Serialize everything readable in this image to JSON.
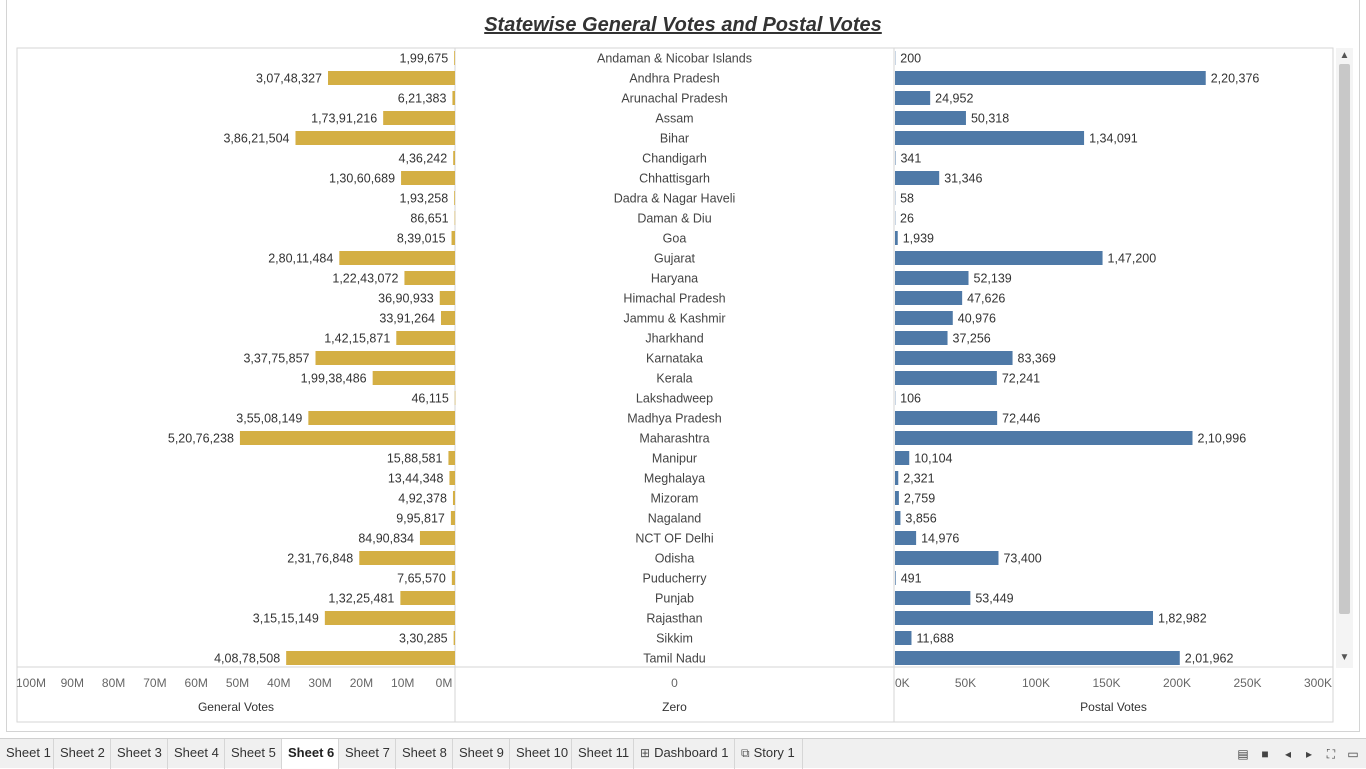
{
  "chart_data": {
    "type": "bar",
    "title": "Statewise General Votes and Postal Votes",
    "categories": [
      "Andaman & Nicobar Islands",
      "Andhra Pradesh",
      "Arunachal Pradesh",
      "Assam",
      "Bihar",
      "Chandigarh",
      "Chhattisgarh",
      "Dadra & Nagar Haveli",
      "Daman & Diu",
      "Goa",
      "Gujarat",
      "Haryana",
      "Himachal Pradesh",
      "Jammu & Kashmir",
      "Jharkhand",
      "Karnataka",
      "Kerala",
      "Lakshadweep",
      "Madhya Pradesh",
      "Maharashtra",
      "Manipur",
      "Meghalaya",
      "Mizoram",
      "Nagaland",
      "NCT OF Delhi",
      "Odisha",
      "Puducherry",
      "Punjab",
      "Rajasthan",
      "Sikkim",
      "Tamil Nadu"
    ],
    "series": [
      {
        "name": "General Votes",
        "color": "#d4af44",
        "values": [
          199675,
          30748327,
          621383,
          17391216,
          38621504,
          436242,
          13060689,
          193258,
          86651,
          839015,
          28011484,
          12243072,
          3690933,
          3391264,
          14215871,
          33775857,
          19938486,
          46115,
          35508149,
          52076238,
          1588581,
          1344348,
          492378,
          995817,
          8490834,
          23176848,
          765570,
          13225481,
          31515149,
          330285,
          40878508
        ],
        "labels": [
          "1,99,675",
          "3,07,48,327",
          "6,21,383",
          "1,73,91,216",
          "3,86,21,504",
          "4,36,242",
          "1,30,60,689",
          "1,93,258",
          "86,651",
          "8,39,015",
          "2,80,11,484",
          "1,22,43,072",
          "36,90,933",
          "33,91,264",
          "1,42,15,871",
          "3,37,75,857",
          "1,99,38,486",
          "46,115",
          "3,55,08,149",
          "5,20,76,238",
          "15,88,581",
          "13,44,348",
          "4,92,378",
          "9,95,817",
          "84,90,834",
          "2,31,76,848",
          "7,65,570",
          "1,32,25,481",
          "3,15,15,149",
          "3,30,285",
          "4,08,78,508"
        ]
      },
      {
        "name": "Postal Votes",
        "color": "#4e79a7",
        "values": [
          200,
          220376,
          24952,
          50318,
          134091,
          341,
          31346,
          58,
          26,
          1939,
          147200,
          52139,
          47626,
          40976,
          37256,
          83369,
          72241,
          106,
          72446,
          210996,
          10104,
          2321,
          2759,
          3856,
          14976,
          73400,
          491,
          53449,
          182982,
          11688,
          201962
        ],
        "labels": [
          "200",
          "2,20,376",
          "24,952",
          "50,318",
          "1,34,091",
          "341",
          "31,346",
          "58",
          "26",
          "1,939",
          "1,47,200",
          "52,139",
          "47,626",
          "40,976",
          "37,256",
          "83,369",
          "72,241",
          "106",
          "72,446",
          "2,10,996",
          "10,104",
          "2,321",
          "2,759",
          "3,856",
          "14,976",
          "73,400",
          "491",
          "53,449",
          "1,82,982",
          "11,688",
          "2,01,962"
        ]
      }
    ],
    "axes": {
      "general": {
        "label": "General Votes",
        "ticks": [
          "100M",
          "90M",
          "80M",
          "70M",
          "60M",
          "50M",
          "40M",
          "30M",
          "20M",
          "10M",
          "0M"
        ],
        "xlim": [
          0,
          100000000
        ],
        "reversed": true
      },
      "zero": {
        "label": "Zero",
        "ticks": [
          "0"
        ]
      },
      "postal": {
        "label": "Postal Votes",
        "ticks": [
          "0K",
          "50K",
          "100K",
          "150K",
          "200K",
          "250K",
          "300K"
        ],
        "xlim": [
          0,
          300000
        ]
      }
    },
    "grid": false,
    "legend": "none"
  },
  "tabs": [
    {
      "label": "Sheet 1",
      "icon": ""
    },
    {
      "label": "Sheet 2",
      "icon": ""
    },
    {
      "label": "Sheet 3",
      "icon": ""
    },
    {
      "label": "Sheet 4",
      "icon": ""
    },
    {
      "label": "Sheet 5",
      "icon": ""
    },
    {
      "label": "Sheet 6",
      "icon": "",
      "active": true
    },
    {
      "label": "Sheet 7",
      "icon": ""
    },
    {
      "label": "Sheet 8",
      "icon": ""
    },
    {
      "label": "Sheet 9",
      "icon": ""
    },
    {
      "label": "Sheet 10",
      "icon": ""
    },
    {
      "label": "Sheet 11",
      "icon": ""
    },
    {
      "label": "Dashboard 1",
      "icon": "dashboard-icon"
    },
    {
      "label": "Story 1",
      "icon": "story-icon"
    }
  ],
  "controls": [
    "sheet-sorter-icon",
    "filmstrip-icon",
    "prev-sheet-icon",
    "next-sheet-icon",
    "fullscreen-icon",
    "presentation-icon"
  ]
}
